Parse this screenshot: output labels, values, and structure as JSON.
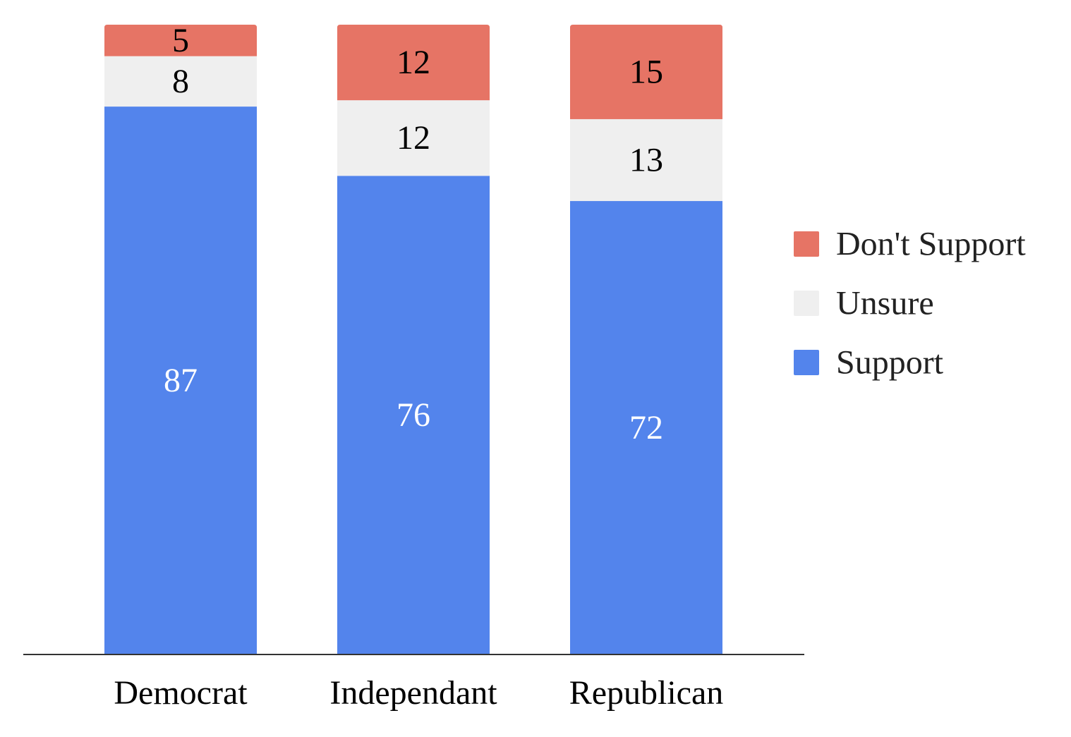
{
  "chart_data": {
    "type": "bar",
    "stacked": true,
    "categories": [
      "Democrat",
      "Independant",
      "Republican"
    ],
    "series": [
      {
        "name": "Support",
        "color": "#5384EC",
        "label_color": "#ffffff",
        "values": [
          87,
          76,
          72
        ]
      },
      {
        "name": "Unsure",
        "color": "#EFEFEF",
        "label_color": "#000000",
        "values": [
          8,
          12,
          13
        ]
      },
      {
        "name": "Don't Support",
        "color": "#E67465",
        "label_color": "#000000",
        "values": [
          5,
          12,
          15
        ]
      }
    ],
    "legend": {
      "position": "right",
      "order": [
        "Don't Support",
        "Unsure",
        "Support"
      ]
    },
    "ylim": [
      0,
      100
    ],
    "grid": false,
    "data_labels": true
  }
}
